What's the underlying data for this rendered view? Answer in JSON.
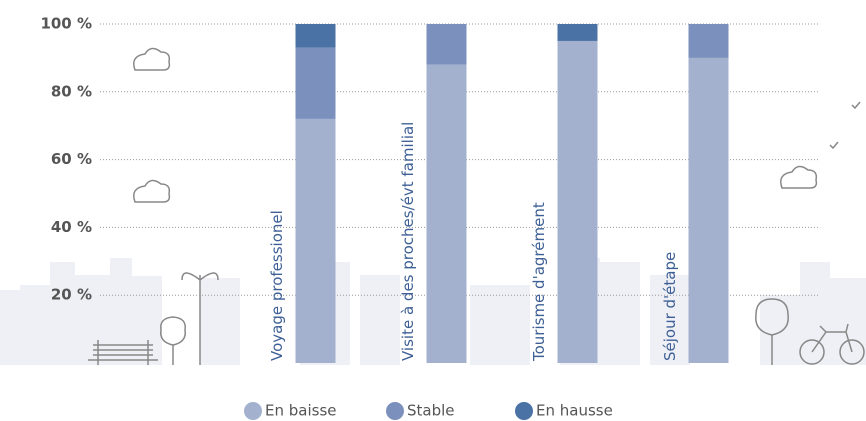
{
  "chart_data": {
    "type": "stacked-bar",
    "categories": [
      "Voyage professionel",
      "Visite à des proches/évt familial",
      "Tourisme d'agrément",
      "Séjour d'étape"
    ],
    "series": [
      {
        "name": "En baisse",
        "color": "#a3b1cf",
        "values": [
          72,
          88,
          95,
          90
        ]
      },
      {
        "name": "Stable",
        "color": "#7b90bd",
        "values": [
          21,
          12,
          0,
          10
        ]
      },
      {
        "name": "En hausse",
        "color": "#4a72a5",
        "values": [
          7,
          0,
          5,
          0
        ]
      }
    ],
    "ylim": [
      0,
      100
    ],
    "yticks": [
      {
        "value": 20,
        "label": "20 %"
      },
      {
        "value": 40,
        "label": "40 %"
      },
      {
        "value": 60,
        "label": "60 %"
      },
      {
        "value": 80,
        "label": "80 %"
      },
      {
        "value": 100,
        "label": "100 %"
      }
    ],
    "grid": true
  }
}
